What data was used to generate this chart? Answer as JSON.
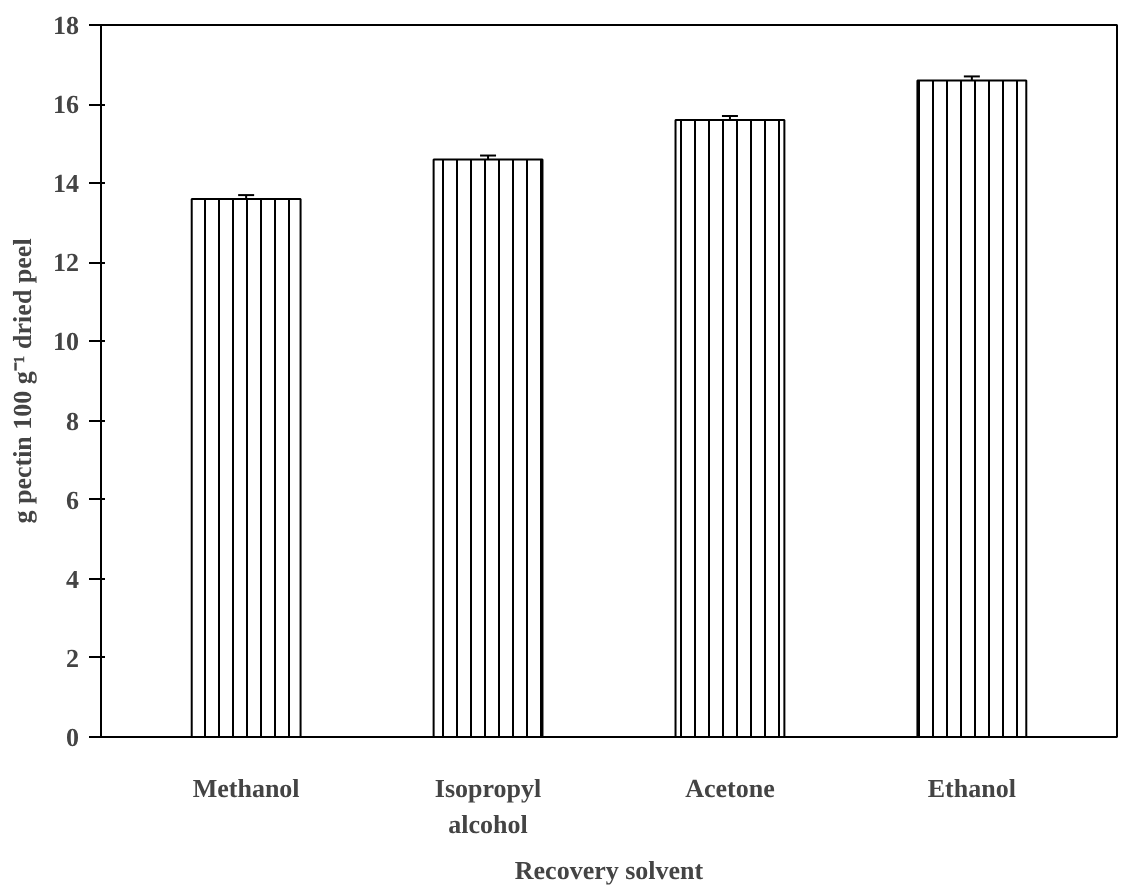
{
  "chart_data": {
    "type": "bar",
    "xlabel": "Recovery solvent",
    "ylabel": "g pectin 100 g⁻¹ dried peel",
    "categories": [
      "Methanol",
      "Isopropyl\nalcohol",
      "Acetone",
      "Ethanol"
    ],
    "values": [
      13.6,
      14.6,
      15.6,
      16.6
    ],
    "errors": [
      0.1,
      0.1,
      0.1,
      0.1
    ],
    "color": "#000000",
    "ylim": [
      0,
      18
    ],
    "yticks": [
      0,
      2,
      4,
      6,
      8,
      10,
      12,
      14,
      16,
      18
    ],
    "grid": false
  }
}
